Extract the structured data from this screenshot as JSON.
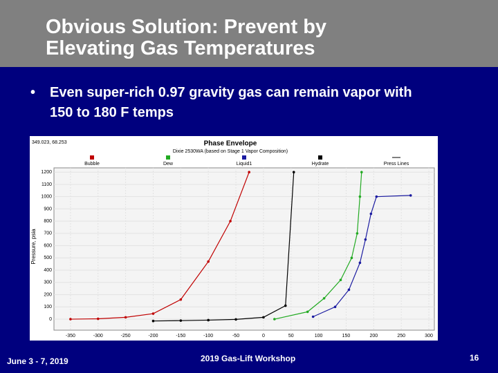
{
  "header": {
    "title": "Obvious Solution: Prevent by Elevating Gas Temperatures"
  },
  "bullets": [
    "Even super-rich 0.97 gravity gas can remain vapor with 150 to 180 F temps"
  ],
  "chart_data": {
    "type": "line",
    "title": "Phase Envelope",
    "subtitle": "Dixie 2530WA (based on Stage 1 Vapor Composition)",
    "readout": "349.023, 68.253",
    "ylabel": "Pressure, psia",
    "xlim": [
      -380,
      310
    ],
    "xticks": [
      -350,
      -300,
      -250,
      -200,
      -150,
      -100,
      -50,
      0,
      50,
      100,
      150,
      200,
      250,
      300
    ],
    "ylim": [
      -90,
      1235
    ],
    "yticks": [
      0,
      100,
      200,
      300,
      400,
      500,
      600,
      700,
      800,
      900,
      1000,
      1100,
      1200
    ],
    "grid": true,
    "series": [
      {
        "name": "Bubble",
        "color": "#c00000",
        "x": [
          -350,
          -300,
          -250,
          -200,
          -150,
          -100,
          -60,
          -26
        ],
        "values": [
          0,
          3,
          15,
          45,
          160,
          470,
          800,
          1200
        ]
      },
      {
        "name": "Dew",
        "color": "#22aa22",
        "x": [
          20,
          80,
          110,
          140,
          160,
          170,
          175,
          178
        ],
        "values": [
          0,
          60,
          170,
          320,
          500,
          700,
          1000,
          1200
        ]
      },
      {
        "name": "Liquid1",
        "color": "#1a1aa0",
        "x": [
          90,
          130,
          155,
          175,
          185,
          195,
          205,
          267
        ],
        "values": [
          20,
          100,
          240,
          460,
          650,
          860,
          1000,
          1010
        ]
      },
      {
        "name": "Hydrate",
        "color": "#000000",
        "x": [
          -200,
          -150,
          -100,
          -50,
          0,
          40,
          55
        ],
        "values": [
          -15,
          -12,
          -8,
          -2,
          15,
          110,
          1200
        ]
      }
    ],
    "extra_legend": "Press Lines"
  },
  "footer": {
    "date": "June 3 - 7, 2019",
    "event": "2019 Gas-Lift Workshop",
    "page": "16"
  }
}
